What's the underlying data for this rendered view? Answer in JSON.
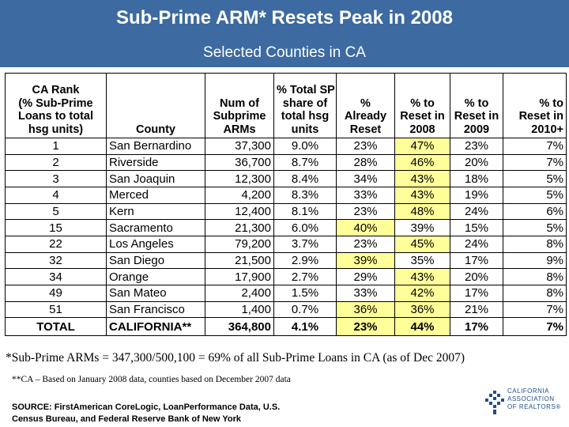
{
  "header": {
    "title": "Sub-Prime ARM* Resets Peak in 2008",
    "subtitle": "Selected Counties in CA",
    "bg_color": "#3c6aa1"
  },
  "table": {
    "headers": {
      "rank": [
        "CA Rank",
        "(% Sub-Prime",
        "Loans to total",
        "hsg units)"
      ],
      "county": [
        "County"
      ],
      "num": [
        "Num of",
        "Subprime",
        "ARMs"
      ],
      "share": [
        "% Total SP",
        "share of",
        "total hsg",
        "units"
      ],
      "already": [
        "%",
        "Already",
        "Reset"
      ],
      "y2008": [
        "% to",
        "Reset in",
        "2008"
      ],
      "y2009": [
        "% to",
        "Reset in",
        "2009"
      ],
      "y2010": [
        "% to",
        "Reset in",
        "2010+"
      ]
    },
    "rows": [
      {
        "rank": "1",
        "county": "San Bernardino",
        "num": "37,300",
        "share": "9.0%",
        "already": "23%",
        "y2008": "47%",
        "y2009": "23%",
        "y2010": "7%",
        "hl_already": false,
        "hl_2008": true
      },
      {
        "rank": "2",
        "county": "Riverside",
        "num": "36,700",
        "share": "8.7%",
        "already": "28%",
        "y2008": "46%",
        "y2009": "20%",
        "y2010": "7%",
        "hl_already": false,
        "hl_2008": true
      },
      {
        "rank": "3",
        "county": "San Joaquin",
        "num": "12,300",
        "share": "8.4%",
        "already": "34%",
        "y2008": "43%",
        "y2009": "18%",
        "y2010": "5%",
        "hl_already": false,
        "hl_2008": true
      },
      {
        "rank": "4",
        "county": "Merced",
        "num": "4,200",
        "share": "8.3%",
        "already": "33%",
        "y2008": "43%",
        "y2009": "19%",
        "y2010": "5%",
        "hl_already": false,
        "hl_2008": true
      },
      {
        "rank": "5",
        "county": "Kern",
        "num": "12,400",
        "share": "8.1%",
        "already": "23%",
        "y2008": "48%",
        "y2009": "24%",
        "y2010": "6%",
        "hl_already": false,
        "hl_2008": true
      },
      {
        "rank": "15",
        "county": "Sacramento",
        "num": "21,300",
        "share": "6.0%",
        "already": "40%",
        "y2008": "39%",
        "y2009": "15%",
        "y2010": "5%",
        "hl_already": true,
        "hl_2008": false
      },
      {
        "rank": "22",
        "county": "Los Angeles",
        "num": "79,200",
        "share": "3.7%",
        "already": "23%",
        "y2008": "45%",
        "y2009": "24%",
        "y2010": "8%",
        "hl_already": false,
        "hl_2008": true
      },
      {
        "rank": "32",
        "county": "San Diego",
        "num": "21,500",
        "share": "2.9%",
        "already": "39%",
        "y2008": "35%",
        "y2009": "17%",
        "y2010": "9%",
        "hl_already": true,
        "hl_2008": false
      },
      {
        "rank": "34",
        "county": "Orange",
        "num": "17,900",
        "share": "2.7%",
        "already": "29%",
        "y2008": "43%",
        "y2009": "20%",
        "y2010": "8%",
        "hl_already": false,
        "hl_2008": true
      },
      {
        "rank": "49",
        "county": "San Mateo",
        "num": "2,400",
        "share": "1.5%",
        "already": "33%",
        "y2008": "42%",
        "y2009": "17%",
        "y2010": "8%",
        "hl_already": false,
        "hl_2008": true
      },
      {
        "rank": "51",
        "county": "San Francisco",
        "num": "1,400",
        "share": "0.7%",
        "already": "36%",
        "y2008": "36%",
        "y2009": "21%",
        "y2010": "7%",
        "hl_already": true,
        "hl_2008": true
      }
    ],
    "total": {
      "rank": "TOTAL",
      "county": "CALIFORNIA**",
      "num": "364,800",
      "share": "4.1%",
      "already": "23%",
      "y2008": "44%",
      "y2009": "17%",
      "y2010": "7%",
      "hl_already": true,
      "hl_2008": true
    },
    "highlight_color": "#ffff99"
  },
  "notes": {
    "arms": "*Sub-Prime ARMs = 347,300/500,100 = 69% of all Sub-Prime Loans in CA (as of Dec 2007)",
    "ca": "**CA – Based on January 2008 data, counties based on December 2007 data",
    "source_line1": "SOURCE: FirstAmerican CoreLogic, LoanPerformance Data, U.S.",
    "source_line2": "Census Bureau, and Federal Reserve Bank of New York"
  },
  "logo": {
    "line1": "CALIFORNIA",
    "line2": "ASSOCIATION",
    "line3": "OF REALTORS®",
    "color": "#1f4e8c"
  }
}
